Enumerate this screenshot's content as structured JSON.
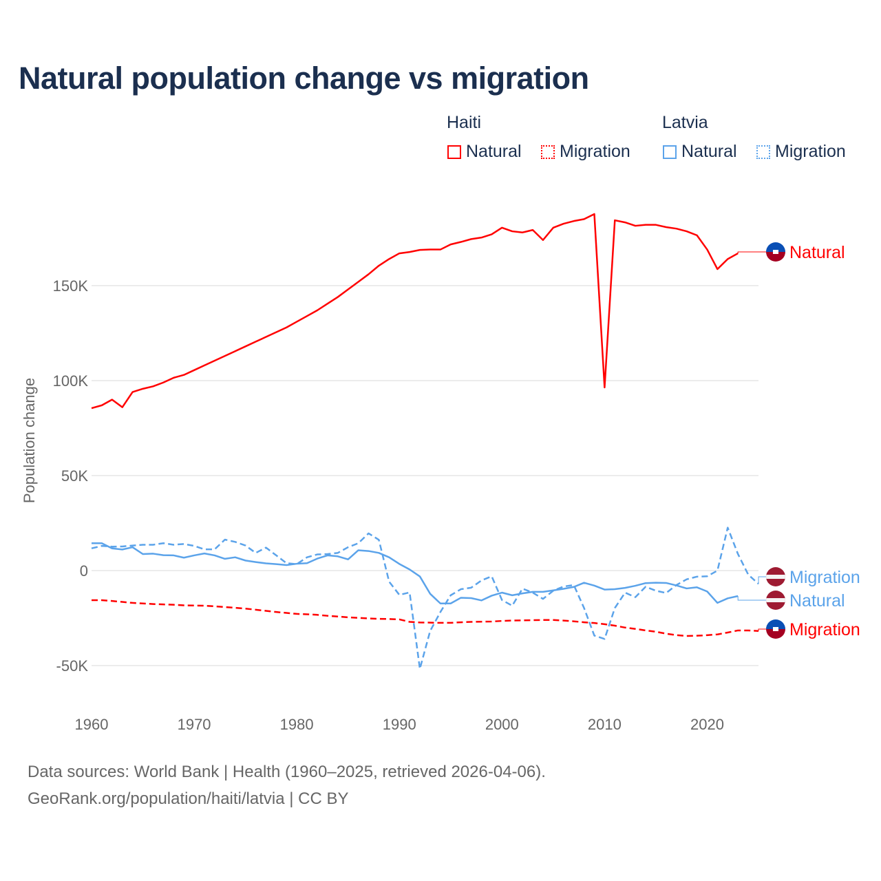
{
  "title": "Natural population change vs migration",
  "legend": {
    "groups": [
      {
        "name": "Haiti",
        "items": [
          {
            "label": "Natural",
            "style": "solid"
          },
          {
            "label": "Migration",
            "style": "dotted"
          }
        ],
        "color": "#ff0000"
      },
      {
        "name": "Latvia",
        "items": [
          {
            "label": "Natural",
            "style": "solid"
          },
          {
            "label": "Migration",
            "style": "dotted"
          }
        ],
        "color": "#5ba3ea"
      }
    ]
  },
  "footer": {
    "line1": "Data sources: World Bank | Health (1960–2025, retrieved 2026-04-06).",
    "line2": "GeoRank.org/population/haiti/latvia | CC BY"
  },
  "chart_data": {
    "type": "line",
    "title": "Natural population change vs migration",
    "xlabel": "",
    "ylabel": "Population change",
    "xlim": [
      1960,
      2025
    ],
    "ylim": [
      -60000,
      200000
    ],
    "yticks": [
      -50000,
      0,
      50000,
      100000,
      150000
    ],
    "ytick_labels": [
      "-50K",
      "0",
      "50K",
      "100K",
      "150K"
    ],
    "xticks": [
      1960,
      1970,
      1980,
      1990,
      2000,
      2010,
      2020
    ],
    "xtick_labels": [
      "1960",
      "1970",
      "1980",
      "1990",
      "2000",
      "2010",
      "2020"
    ],
    "grid": true,
    "legend_placement": "top-right",
    "series": [
      {
        "name": "Haiti Natural",
        "country": "Haiti",
        "end_label": "Natural",
        "color": "#ff0000",
        "dash": "solid",
        "start": 1960,
        "values_k": [
          85.5,
          87,
          90,
          86,
          94,
          95.7,
          97,
          99,
          101.5,
          103,
          105.5,
          108,
          110.5,
          113,
          115.5,
          118,
          120.5,
          123,
          125.5,
          128,
          131,
          134,
          137,
          140.5,
          144,
          148,
          152,
          156,
          160.5,
          164,
          167,
          167.7,
          168.8,
          169,
          169,
          171.7,
          173,
          174.5,
          175.3,
          177,
          180.5,
          178.6,
          178,
          179.3,
          174,
          180.5,
          182.6,
          184,
          185,
          187.7,
          96.4,
          184.4,
          183.3,
          181.5,
          182,
          182,
          180.8,
          180,
          178.6,
          176.5,
          169,
          158.7,
          164,
          167
        ]
      },
      {
        "name": "Haiti Migration",
        "country": "Haiti",
        "end_label": "Migration",
        "color": "#ff0000",
        "dash": "dashed",
        "start": 1960,
        "values_k": [
          -15.6,
          -15.6,
          -16,
          -16.5,
          -17,
          -17.3,
          -17.6,
          -17.8,
          -18,
          -18.3,
          -18.4,
          -18.5,
          -18.8,
          -19.2,
          -19.6,
          -20,
          -20.6,
          -21.2,
          -21.8,
          -22.3,
          -22.8,
          -23,
          -23.3,
          -23.8,
          -24.2,
          -24.6,
          -24.9,
          -25.2,
          -25.4,
          -25.5,
          -25.7,
          -27,
          -27.3,
          -27.4,
          -27.5,
          -27.5,
          -27.2,
          -27,
          -26.9,
          -26.8,
          -26.5,
          -26.3,
          -26.2,
          -26.1,
          -26,
          -26,
          -26.3,
          -26.7,
          -27.2,
          -27.6,
          -28.2,
          -29,
          -30,
          -30.7,
          -31.5,
          -32.2,
          -33.2,
          -34,
          -34.4,
          -34.3,
          -34,
          -33.6,
          -32.6,
          -31.5,
          -31.5,
          -31.8
        ]
      },
      {
        "name": "Latvia Migration",
        "country": "Latvia",
        "end_label": "Migration",
        "color": "#5ba3ea",
        "dash": "dashed",
        "start": 1960,
        "values_k": [
          11.7,
          13,
          12.6,
          12.7,
          13.2,
          13.6,
          13.6,
          14.4,
          13.6,
          14,
          13,
          11.2,
          11.2,
          16.3,
          15.1,
          13.2,
          9.3,
          12.1,
          8,
          3.9,
          3.4,
          7,
          8.5,
          8.7,
          9.3,
          12.3,
          14.4,
          19.6,
          16.2,
          -5.8,
          -12.8,
          -11.5,
          -51.7,
          -31.8,
          -21.8,
          -13,
          -9.8,
          -9,
          -5.2,
          -3,
          -15.5,
          -18.5,
          -9.5,
          -11.6,
          -14.9,
          -10.6,
          -8.4,
          -7.6,
          -19.7,
          -34.2,
          -36,
          -19.7,
          -11.6,
          -14,
          -8.5,
          -10.6,
          -11.8,
          -7.6,
          -4.6,
          -3.2,
          -3,
          0,
          22.6,
          8.7,
          -2.1,
          -7
        ]
      },
      {
        "name": "Latvia Natural",
        "country": "Latvia",
        "end_label": "Natural",
        "color": "#5ba3ea",
        "dash": "solid",
        "start": 1960,
        "values_k": [
          14.4,
          14.4,
          11.7,
          11.1,
          12.3,
          8.7,
          8.9,
          8.1,
          8,
          6.8,
          8,
          9,
          8,
          6.2,
          7,
          5.3,
          4.5,
          3.8,
          3.4,
          2.9,
          3.6,
          3.9,
          6.3,
          8,
          7.5,
          5.9,
          10.7,
          10.3,
          9.3,
          7,
          3.5,
          0.6,
          -3.1,
          -12.2,
          -17.3,
          -17.3,
          -14.3,
          -14.5,
          -15.7,
          -13.2,
          -11.6,
          -13,
          -12,
          -11.2,
          -11.2,
          -10.4,
          -9.6,
          -8.6,
          -6.4,
          -7.9,
          -10,
          -9.8,
          -9.1,
          -8,
          -6.6,
          -6.4,
          -6.5,
          -7.8,
          -9.4,
          -8.8,
          -11,
          -17,
          -14.6,
          -13.4
        ]
      }
    ]
  }
}
